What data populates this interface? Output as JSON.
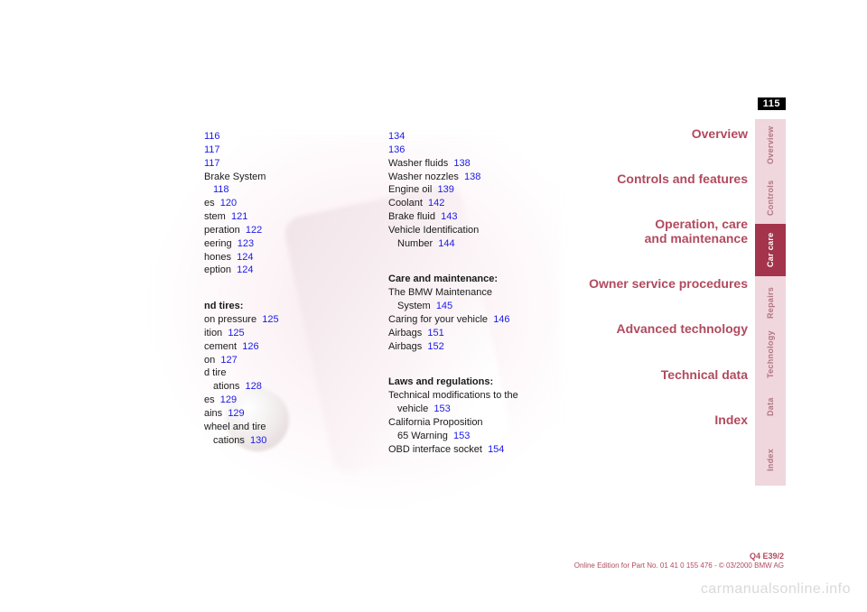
{
  "page_number": "115",
  "nav": [
    "Overview",
    "Controls and features",
    "Operation, care\nand maintenance",
    "Owner service procedures",
    "Advanced technology",
    "Technical data",
    "Index"
  ],
  "tabs": [
    {
      "label": "Overview",
      "style": "light"
    },
    {
      "label": "Controls",
      "style": "light"
    },
    {
      "label": "Car care",
      "style": "dark"
    },
    {
      "label": "Repairs",
      "style": "light"
    },
    {
      "label": "Technology",
      "style": "light"
    },
    {
      "label": "Data",
      "style": "light"
    },
    {
      "label": "Index",
      "style": "light"
    }
  ],
  "col1": [
    {
      "text": "",
      "page": "116",
      "bold": false
    },
    {
      "text": "",
      "page": "117",
      "bold": false
    },
    {
      "text": "",
      "page": "117",
      "bold": false
    },
    {
      "text": "Brake System",
      "page": "",
      "bold": false
    },
    {
      "text": "",
      "page": "118",
      "bold": false,
      "indent": true
    },
    {
      "text": "es",
      "page": "120",
      "bold": false
    },
    {
      "text": "stem",
      "page": "121",
      "bold": false
    },
    {
      "text": "peration",
      "page": "122",
      "bold": false
    },
    {
      "text": "eering",
      "page": "123",
      "bold": false
    },
    {
      "text": "hones",
      "page": "124",
      "bold": false
    },
    {
      "text": "eption",
      "page": "124",
      "bold": false
    },
    {
      "text": "",
      "page": "",
      "bold": false
    },
    {
      "text": "nd tires:",
      "page": "",
      "bold": true
    },
    {
      "text": "on pressure",
      "page": "125",
      "bold": false
    },
    {
      "text": "ition",
      "page": "125",
      "bold": false
    },
    {
      "text": "cement",
      "page": "126",
      "bold": false
    },
    {
      "text": "on",
      "page": "127",
      "bold": false
    },
    {
      "text": "d tire",
      "page": "",
      "bold": false
    },
    {
      "text": "ations",
      "page": "128",
      "bold": false,
      "indent": true
    },
    {
      "text": "es",
      "page": "129",
      "bold": false
    },
    {
      "text": "ains",
      "page": "129",
      "bold": false
    },
    {
      "text": "wheel and tire",
      "page": "",
      "bold": false
    },
    {
      "text": "cations",
      "page": "130",
      "bold": false,
      "indent": true
    }
  ],
  "col2": [
    {
      "text": "",
      "page": "134",
      "bold": false
    },
    {
      "text": "",
      "page": "136",
      "bold": false
    },
    {
      "text": "Washer fluids",
      "page": "138",
      "bold": false
    },
    {
      "text": "Washer nozzles",
      "page": "138",
      "bold": false
    },
    {
      "text": "Engine oil",
      "page": "139",
      "bold": false
    },
    {
      "text": "Coolant",
      "page": "142",
      "bold": false
    },
    {
      "text": "Brake fluid",
      "page": "143",
      "bold": false
    },
    {
      "text": "Vehicle Identification",
      "page": "",
      "bold": false
    },
    {
      "text": "Number",
      "page": "144",
      "bold": false,
      "indent": true
    },
    {
      "text": "",
      "page": "",
      "bold": false
    },
    {
      "text": "Care and maintenance:",
      "page": "",
      "bold": true
    },
    {
      "text": "The BMW Maintenance",
      "page": "",
      "bold": false
    },
    {
      "text": "System",
      "page": "145",
      "bold": false,
      "indent": true
    },
    {
      "text": "Caring for your vehicle",
      "page": "146",
      "bold": false
    },
    {
      "text": "Airbags",
      "page": "151",
      "bold": false
    },
    {
      "text": "Airbags",
      "page": "152",
      "bold": false
    },
    {
      "text": "",
      "page": "",
      "bold": false
    },
    {
      "text": "Laws and regulations:",
      "page": "",
      "bold": true
    },
    {
      "text": "Technical modifications to the",
      "page": "",
      "bold": false
    },
    {
      "text": "vehicle",
      "page": "153",
      "bold": false,
      "indent": true
    },
    {
      "text": "California Proposition",
      "page": "",
      "bold": false
    },
    {
      "text": "65 Warning",
      "page": "153",
      "bold": false,
      "indent": true
    },
    {
      "text": "OBD interface socket",
      "page": "154",
      "bold": false
    }
  ],
  "footer": {
    "model": "Q4 E39/2",
    "edition": "Online Edition for Part No. 01 41 0 155 476 - © 03/2000 BMW AG"
  },
  "watermark": "carmanualsonline.info",
  "colors": {
    "link": "#1a1ae8",
    "accent": "#b14a5e",
    "tab_light_bg": "#f0d6dd",
    "tab_light_fg": "#b07682",
    "tab_dark_bg": "#a3344b",
    "tab_dark_fg": "#ffffff",
    "page_tab_bg": "#000000",
    "page_tab_fg": "#ffffff",
    "watermark": "#d9d9d9"
  }
}
